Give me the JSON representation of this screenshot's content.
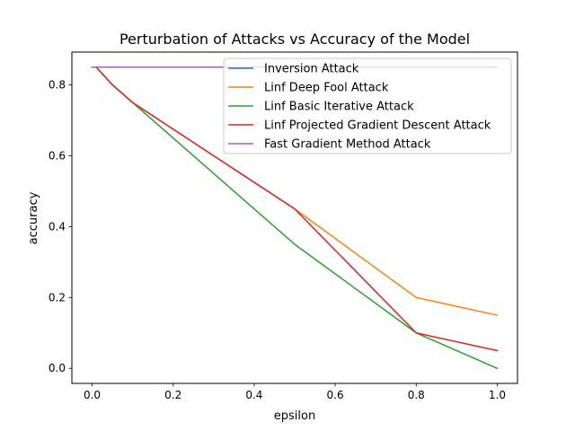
{
  "chart_data": {
    "type": "line",
    "title": "Perturbation of Attacks vs Accuracy of the Model",
    "xlabel": "epsilon",
    "ylabel": "accuracy",
    "xlim": [
      -0.05,
      1.05
    ],
    "ylim": [
      -0.0425,
      0.8925
    ],
    "xticks": [
      0.0,
      0.2,
      0.4,
      0.6,
      0.8,
      1.0
    ],
    "xtick_labels": [
      "0.0",
      "0.2",
      "0.4",
      "0.6",
      "0.8",
      "1.0"
    ],
    "yticks": [
      0.0,
      0.2,
      0.4,
      0.6,
      0.8
    ],
    "ytick_labels": [
      "0.0",
      "0.2",
      "0.4",
      "0.6",
      "0.8"
    ],
    "grid": false,
    "legend_position": "top-right",
    "series": [
      {
        "name": "Inversion Attack",
        "color": "#1f77b4",
        "x": [
          0.0,
          0.01,
          0.05,
          0.1,
          0.5,
          0.8,
          1.0
        ],
        "y": [
          0.85,
          0.85,
          0.85,
          0.85,
          0.85,
          0.85,
          0.85
        ]
      },
      {
        "name": "Linf Deep Fool Attack",
        "color": "#ff7f0e",
        "x": [
          0.0,
          0.01,
          0.05,
          0.1,
          0.5,
          0.8,
          1.0
        ],
        "y": [
          0.85,
          0.85,
          0.8,
          0.75,
          0.45,
          0.2,
          0.15
        ]
      },
      {
        "name": "Linf Basic Iterative Attack",
        "color": "#2ca02c",
        "x": [
          0.0,
          0.01,
          0.05,
          0.1,
          0.5,
          0.8,
          1.0
        ],
        "y": [
          0.85,
          0.85,
          0.8,
          0.75,
          0.35,
          0.1,
          0.0
        ]
      },
      {
        "name": "Linf Projected Gradient Descent Attack",
        "color": "#d62728",
        "x": [
          0.0,
          0.01,
          0.05,
          0.1,
          0.5,
          0.8,
          1.0
        ],
        "y": [
          0.85,
          0.85,
          0.8,
          0.75,
          0.45,
          0.1,
          0.05
        ]
      },
      {
        "name": "Fast Gradient Method Attack",
        "color": "#9467bd",
        "x": [
          0.0,
          0.01,
          0.05,
          0.1,
          0.5,
          0.8,
          1.0
        ],
        "y": [
          0.85,
          0.85,
          0.85,
          0.85,
          0.85,
          0.85,
          0.85
        ]
      }
    ]
  }
}
